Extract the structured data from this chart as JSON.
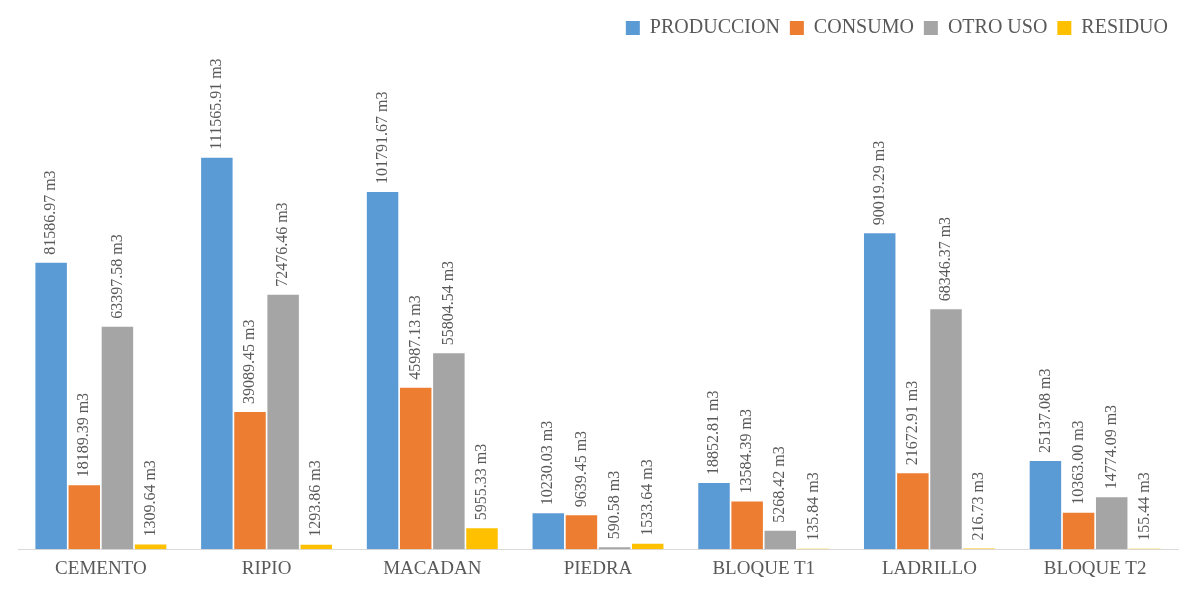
{
  "chart_data": {
    "type": "bar",
    "categories": [
      "CEMENTO",
      "RIPIO",
      "MACADAN",
      "PIEDRA",
      "BLOQUE T1",
      "LADRILLO",
      "BLOQUE T2"
    ],
    "series": [
      {
        "name": "PRODUCCION",
        "color": "#5b9bd5",
        "values": [
          81586.97,
          111565.91,
          101791.67,
          10230.03,
          18852.81,
          90019.29,
          25137.08
        ],
        "value_labels": [
          "81586.97 m3",
          "111565.91 m3",
          "101791.67 m3",
          "10230.03 m3",
          "18852.81 m3",
          "90019.29 m3",
          "25137.08 m3"
        ]
      },
      {
        "name": "CONSUMO",
        "color": "#ed7d31",
        "values": [
          18189.39,
          39089.45,
          45987.13,
          9639.45,
          13584.39,
          21672.91,
          10363.0
        ],
        "value_labels": [
          "18189.39 m3",
          "39089.45 m3",
          "45987.13 m3",
          "9639.45 m3",
          "13584.39 m3",
          "21672.91 m3",
          "10363.00 m3"
        ]
      },
      {
        "name": "OTRO USO",
        "color": "#a5a5a5",
        "values": [
          63397.58,
          72476.46,
          55804.54,
          590.58,
          5268.42,
          68346.37,
          14774.09
        ],
        "value_labels": [
          "63397.58 m3",
          "72476.46 m3",
          "55804.54 m3",
          "590.58 m3",
          "5268.42 m3",
          "68346.37 m3",
          "14774.09 m3"
        ]
      },
      {
        "name": "RESIDUO",
        "color": "#ffc000",
        "values": [
          1309.64,
          1293.86,
          5955.33,
          1533.64,
          135.84,
          216.73,
          155.44
        ],
        "value_labels": [
          "1309.64 m3",
          "1293.86 m3",
          "5955.33 m3",
          "1533.64 m3",
          "135.84 m3",
          "216.73 m3",
          "155.44 m3"
        ]
      }
    ],
    "legend": "top right",
    "tick_labels": "x"
  }
}
